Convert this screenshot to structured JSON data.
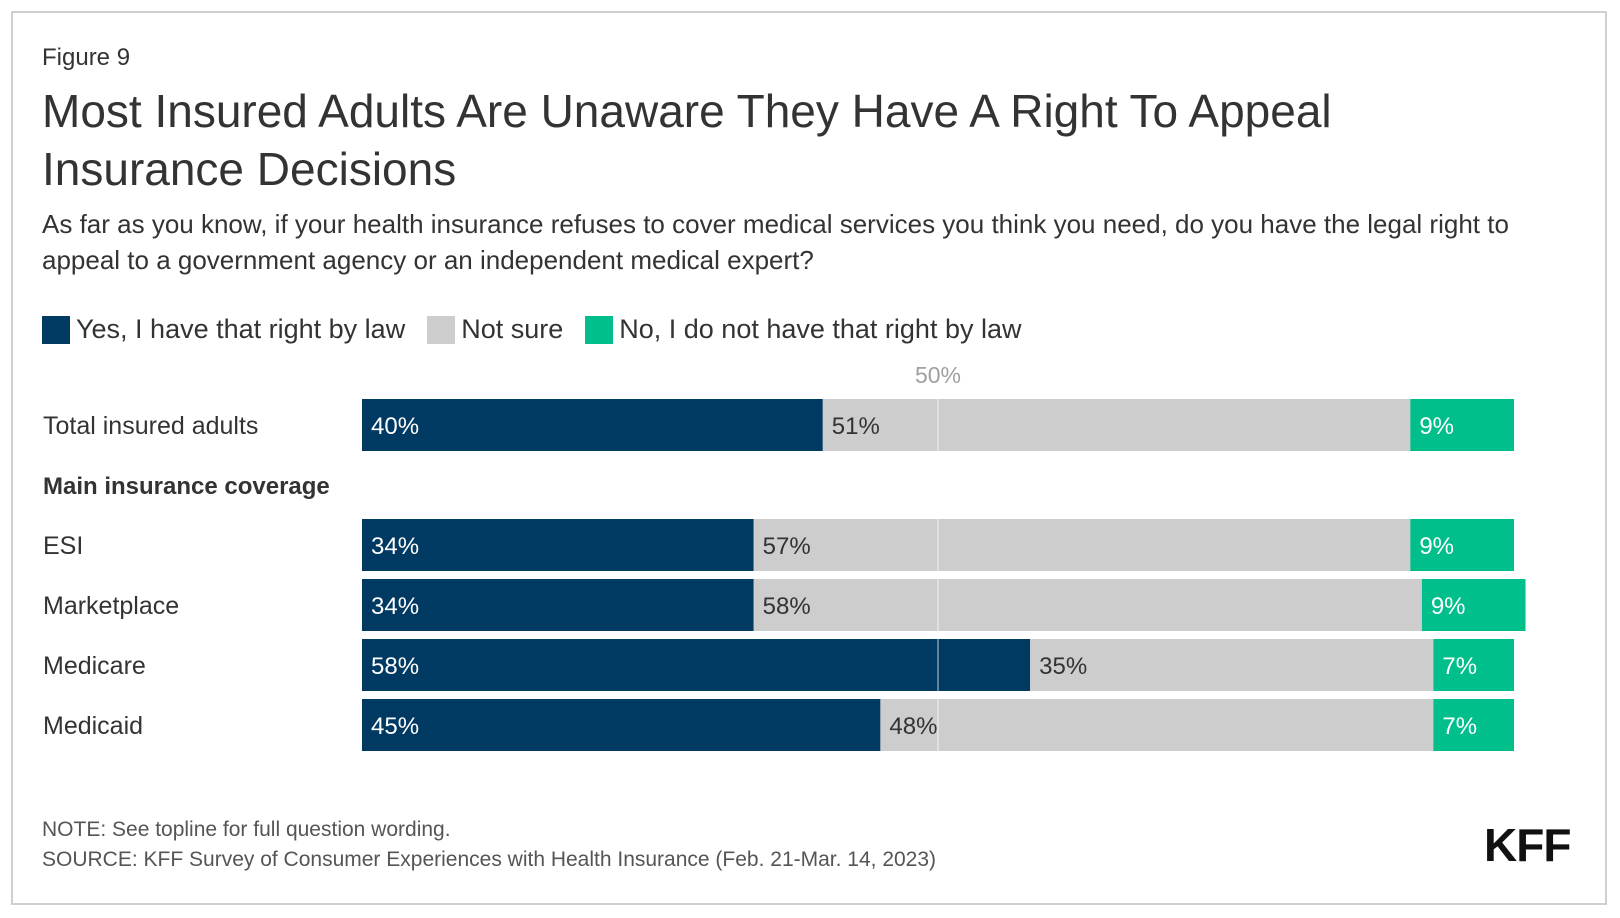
{
  "figure_label": "Figure 9",
  "title": "Most Insured Adults Are Unaware They Have A Right To Appeal Insurance Decisions",
  "subtitle": "As far as you know, if your health insurance refuses to cover medical services you think you need, do you have the legal right to appeal to a government agency or an independent medical expert?",
  "legend": [
    {
      "label": "Yes, I have that right by law",
      "color": "#003A63"
    },
    {
      "label": "Not sure",
      "color": "#CDCDCD"
    },
    {
      "label": "No, I do not have that right by law",
      "color": "#00BF8A"
    }
  ],
  "note": "NOTE: See topline for full question wording.",
  "source": "SOURCE: KFF Survey of Consumer Experiences with Health Insurance (Feb. 21-Mar. 14, 2023)",
  "logo": "KFF",
  "chart_data": {
    "type": "bar",
    "orientation": "horizontal",
    "stacked": true,
    "reference_line": {
      "value": 50,
      "label": "50%"
    },
    "xlim": [
      0,
      100
    ],
    "section_header": "Main insurance coverage",
    "rows": [
      {
        "label": "Total insured adults",
        "values": [
          40,
          51,
          9
        ],
        "labels": [
          "40%",
          "51%",
          "9%"
        ]
      },
      {
        "label": "ESI",
        "values": [
          34,
          57,
          9
        ],
        "labels": [
          "34%",
          "57%",
          "9%"
        ]
      },
      {
        "label": "Marketplace",
        "values": [
          34,
          58,
          9
        ],
        "labels": [
          "34%",
          "58%",
          "9%"
        ]
      },
      {
        "label": "Medicare",
        "values": [
          58,
          35,
          7
        ],
        "labels": [
          "58%",
          "35%",
          "7%"
        ]
      },
      {
        "label": "Medicaid",
        "values": [
          45,
          48,
          7
        ],
        "labels": [
          "45%",
          "48%",
          "7%"
        ]
      }
    ],
    "series": [
      {
        "name": "Yes, I have that right by law"
      },
      {
        "name": "Not sure"
      },
      {
        "name": "No, I do not have that right by law"
      }
    ]
  }
}
